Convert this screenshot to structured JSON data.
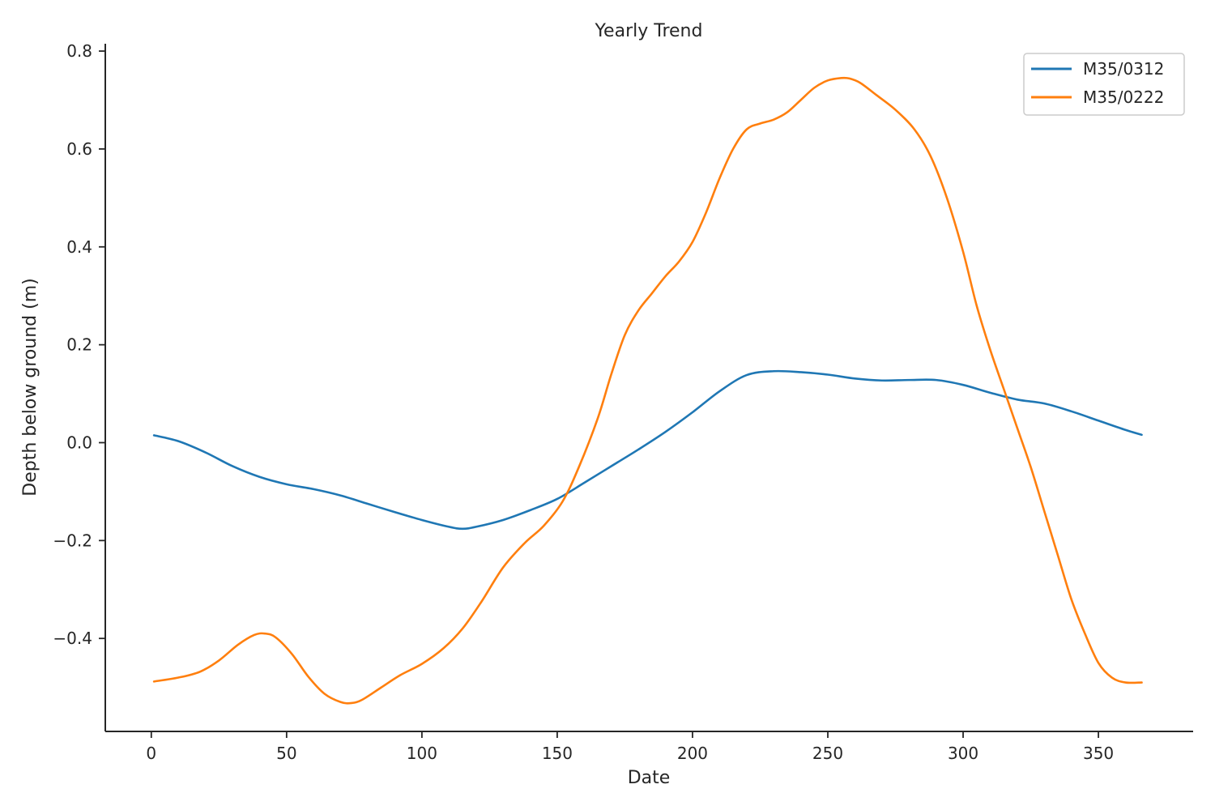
{
  "chart_data": {
    "type": "line",
    "title": "Yearly Trend",
    "xlabel": "Date",
    "ylabel": "Depth below ground (m)",
    "xlim": [
      -17,
      385
    ],
    "ylim": [
      -0.59,
      0.815
    ],
    "xticks": [
      0,
      50,
      100,
      150,
      200,
      250,
      300,
      350
    ],
    "yticks": [
      0.8,
      0.6,
      0.4,
      0.2,
      0.0,
      -0.2,
      -0.4
    ],
    "ytick_labels": [
      "0.8",
      "0.6",
      "0.4",
      "0.2",
      "0.0",
      "−0.2",
      "−0.4"
    ],
    "grid": false,
    "legend_position": "top-right",
    "series": [
      {
        "name": "M35/0312",
        "color": "#1f77b4",
        "x": [
          1,
          10,
          20,
          30,
          40,
          50,
          60,
          70,
          80,
          90,
          100,
          110,
          115,
          120,
          130,
          140,
          150,
          160,
          170,
          180,
          190,
          200,
          210,
          220,
          230,
          240,
          250,
          260,
          270,
          280,
          290,
          300,
          310,
          320,
          330,
          340,
          350,
          360,
          366
        ],
        "y": [
          0.015,
          0.003,
          -0.02,
          -0.048,
          -0.07,
          -0.085,
          -0.095,
          -0.108,
          -0.125,
          -0.142,
          -0.158,
          -0.172,
          -0.176,
          -0.172,
          -0.158,
          -0.138,
          -0.115,
          -0.082,
          -0.048,
          -0.014,
          0.022,
          0.062,
          0.105,
          0.138,
          0.146,
          0.144,
          0.139,
          0.131,
          0.127,
          0.128,
          0.128,
          0.118,
          0.102,
          0.088,
          0.08,
          0.064,
          0.045,
          0.026,
          0.016
        ]
      },
      {
        "name": "M35/0222",
        "color": "#ff7f0e",
        "x": [
          1,
          10,
          18,
          25,
          32,
          38,
          42,
          46,
          52,
          58,
          64,
          70,
          74,
          78,
          85,
          92,
          100,
          108,
          115,
          122,
          130,
          138,
          145,
          152,
          158,
          165,
          170,
          175,
          180,
          185,
          190,
          195,
          200,
          205,
          210,
          215,
          220,
          225,
          230,
          235,
          240,
          245,
          250,
          255,
          258,
          262,
          268,
          275,
          282,
          288,
          294,
          300,
          305,
          310,
          315,
          320,
          325,
          330,
          335,
          340,
          345,
          350,
          355,
          360,
          366
        ],
        "y": [
          -0.488,
          -0.48,
          -0.468,
          -0.445,
          -0.413,
          -0.393,
          -0.39,
          -0.398,
          -0.432,
          -0.478,
          -0.513,
          -0.53,
          -0.532,
          -0.525,
          -0.5,
          -0.475,
          -0.452,
          -0.42,
          -0.38,
          -0.325,
          -0.255,
          -0.205,
          -0.17,
          -0.12,
          -0.05,
          0.05,
          0.14,
          0.22,
          0.27,
          0.305,
          0.34,
          0.37,
          0.41,
          0.47,
          0.54,
          0.6,
          0.64,
          0.652,
          0.66,
          0.675,
          0.7,
          0.725,
          0.74,
          0.745,
          0.744,
          0.735,
          0.71,
          0.68,
          0.64,
          0.585,
          0.5,
          0.39,
          0.28,
          0.19,
          0.11,
          0.03,
          -0.05,
          -0.14,
          -0.23,
          -0.32,
          -0.39,
          -0.45,
          -0.48,
          -0.49,
          -0.49
        ]
      }
    ]
  }
}
